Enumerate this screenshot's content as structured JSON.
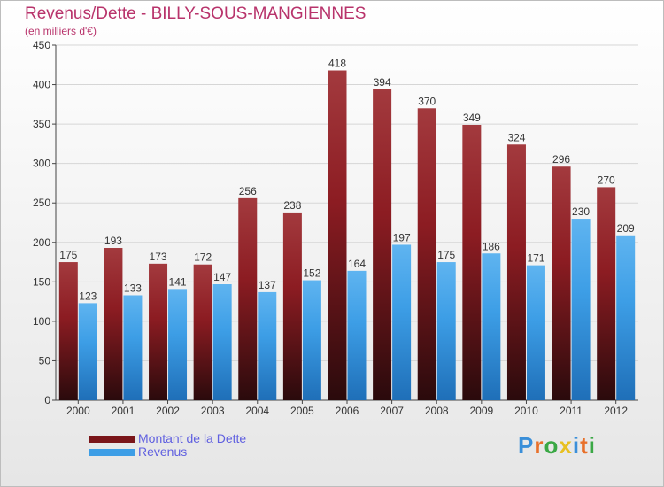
{
  "header": {
    "title": "Revenus/Dette - BILLY-SOUS-MANGIENNES",
    "subtitle": "(en milliers d'€)"
  },
  "chart_data": {
    "type": "bar",
    "title": "Revenus/Dette - BILLY-SOUS-MANGIENNES",
    "ylabel": "(en milliers d'€)",
    "xlabel": "",
    "categories": [
      "2000",
      "2001",
      "2002",
      "2003",
      "2004",
      "2005",
      "2006",
      "2007",
      "2008",
      "2009",
      "2010",
      "2011",
      "2012"
    ],
    "series": [
      {
        "name": "Montant de la Dette",
        "color": "#7a1519",
        "values": [
          175,
          193,
          173,
          172,
          256,
          238,
          418,
          394,
          370,
          349,
          324,
          296,
          270
        ]
      },
      {
        "name": "Revenus",
        "color": "#3d9ee6",
        "values": [
          123,
          133,
          141,
          147,
          137,
          152,
          164,
          197,
          175,
          186,
          171,
          230,
          209
        ]
      }
    ],
    "ylim": [
      0,
      450
    ],
    "yticks": [
      0,
      50,
      100,
      150,
      200,
      250,
      300,
      350,
      400,
      450
    ],
    "grid": true,
    "legend": "bottom-left"
  },
  "legend": {
    "items": [
      {
        "label": "Montant de la Dette",
        "color": "#7a1519"
      },
      {
        "label": "Revenus",
        "color": "#3d9ee6"
      }
    ]
  },
  "brand": {
    "letters": [
      "P",
      "r",
      "o",
      "x",
      "i",
      "t",
      "i"
    ],
    "colors": [
      "#3a8fd9",
      "#e8702a",
      "#3aa845",
      "#e8c020",
      "#3a8fd9",
      "#e8702a",
      "#3aa845"
    ]
  }
}
